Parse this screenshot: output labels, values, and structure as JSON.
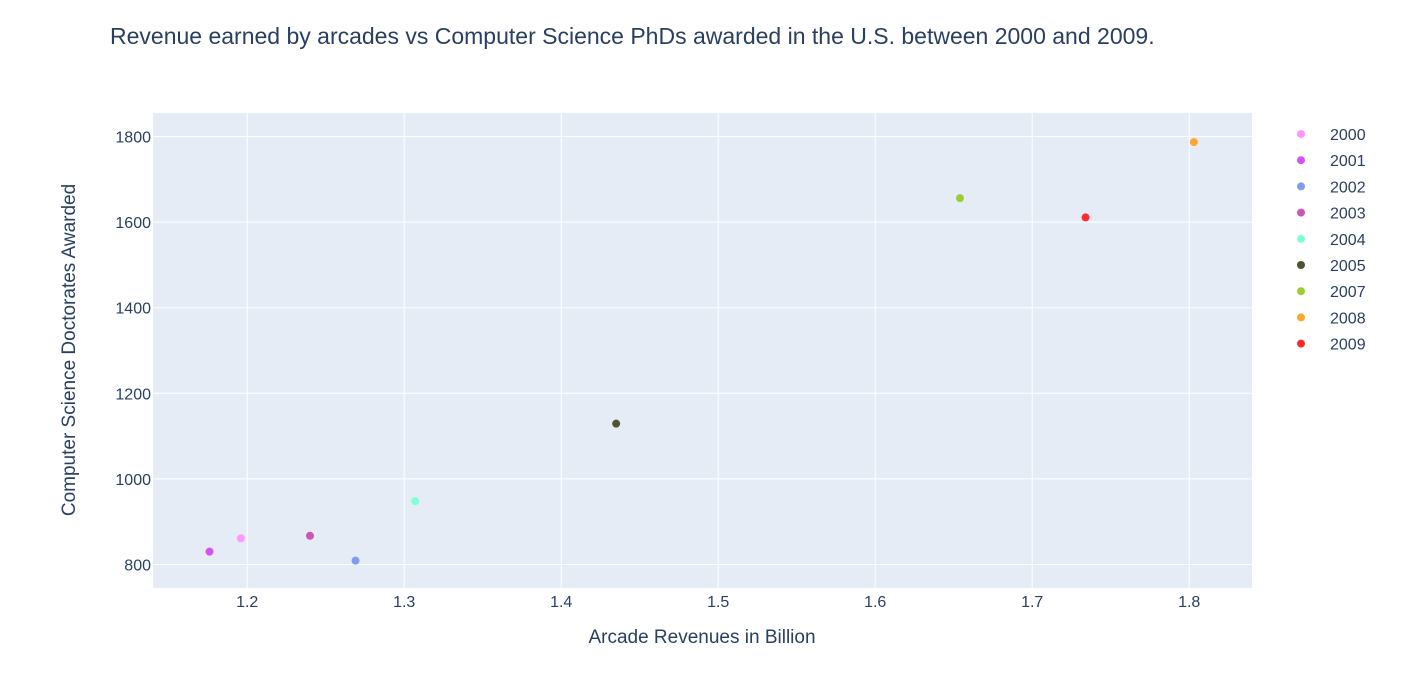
{
  "chart_data": {
    "type": "scatter",
    "title": "Revenue earned by arcades vs Computer Science PhDs awarded in the U.S. between 2000 and 2009.",
    "xlabel": "Arcade Revenues in Billion",
    "ylabel": "Computer Science Doctorates Awarded",
    "xlim": [
      1.14,
      1.84
    ],
    "ylim": [
      745,
      1855
    ],
    "x_ticks": [
      1.2,
      1.3,
      1.4,
      1.5,
      1.6,
      1.7,
      1.8
    ],
    "y_ticks": [
      800,
      1000,
      1200,
      1400,
      1600,
      1800
    ],
    "x_tick_labels": [
      "1.2",
      "1.3",
      "1.4",
      "1.5",
      "1.6",
      "1.7",
      "1.8"
    ],
    "y_tick_labels": [
      "800",
      "1000",
      "1200",
      "1400",
      "1600",
      "1800"
    ],
    "grid": true,
    "legend_position": "right",
    "plot_background": "#E5ECF6",
    "series": [
      {
        "name": "2000",
        "color": "#FF97FF",
        "x": [
          1.196
        ],
        "y": [
          861
        ]
      },
      {
        "name": "2001",
        "color": "#D452F5",
        "x": [
          1.176
        ],
        "y": [
          830
        ]
      },
      {
        "name": "2002",
        "color": "#7F9CF5",
        "x": [
          1.269
        ],
        "y": [
          809
        ]
      },
      {
        "name": "2003",
        "color": "#CC56B0",
        "x": [
          1.24
        ],
        "y": [
          867
        ]
      },
      {
        "name": "2004",
        "color": "#7FFFD4",
        "x": [
          1.307
        ],
        "y": [
          948
        ]
      },
      {
        "name": "2005",
        "color": "#4F5333",
        "x": [
          1.435
        ],
        "y": [
          1129
        ]
      },
      {
        "name": "2007",
        "color": "#9ACD32",
        "x": [
          1.654
        ],
        "y": [
          1656
        ]
      },
      {
        "name": "2008",
        "color": "#FFA530",
        "x": [
          1.803
        ],
        "y": [
          1787
        ]
      },
      {
        "name": "2009",
        "color": "#FF2A2A",
        "x": [
          1.734
        ],
        "y": [
          1611
        ]
      }
    ]
  }
}
